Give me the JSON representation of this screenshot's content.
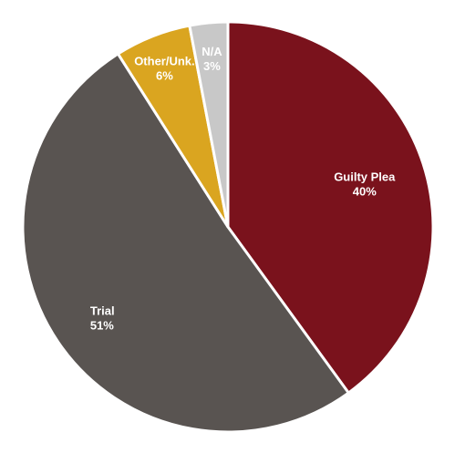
{
  "chart_data": {
    "type": "pie",
    "title": "",
    "start_angle_deg": 0,
    "direction": "clockwise",
    "legend": "none",
    "slices": [
      {
        "label": "Guilty Plea",
        "value": 40,
        "percent_label": "40%",
        "color": "#7a121c"
      },
      {
        "label": "Trial",
        "value": 51,
        "percent_label": "51%",
        "color": "#595451"
      },
      {
        "label": "Other/Unk.",
        "value": 6,
        "percent_label": "6%",
        "color": "#daa520"
      },
      {
        "label": "N/A",
        "value": 3,
        "percent_label": "3%",
        "color": "#c8c8c8"
      }
    ]
  }
}
